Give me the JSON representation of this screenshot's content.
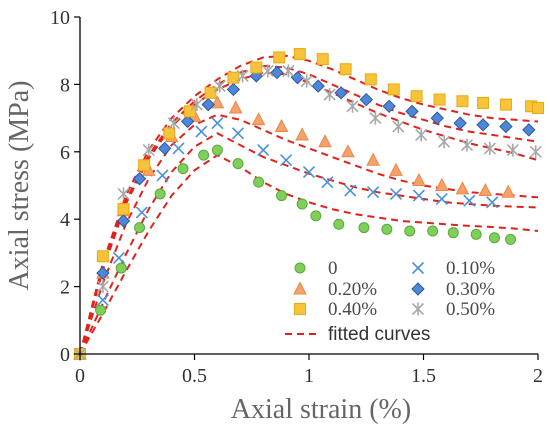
{
  "chart_data": {
    "type": "scatter",
    "xlabel": "Axial strain (%)",
    "ylabel": "Axial stress (MPa)",
    "xlim": [
      0,
      2
    ],
    "ylim": [
      0,
      10
    ],
    "x_ticks": [
      "0",
      "0.5",
      "1",
      "1.5",
      "2"
    ],
    "y_ticks": [
      "0",
      "2",
      "4",
      "6",
      "8",
      "10"
    ],
    "grid": false,
    "legend_position": "bottom-right",
    "series": [
      {
        "name": "0",
        "marker": "circle",
        "color": "#7fcf5a",
        "points": [
          [
            0,
            0
          ],
          [
            0.09,
            1.3
          ],
          [
            0.18,
            2.55
          ],
          [
            0.26,
            3.75
          ],
          [
            0.35,
            4.75
          ],
          [
            0.45,
            5.5
          ],
          [
            0.54,
            5.9
          ],
          [
            0.6,
            6.05
          ],
          [
            0.69,
            5.65
          ],
          [
            0.78,
            5.1
          ],
          [
            0.88,
            4.7
          ],
          [
            0.97,
            4.45
          ],
          [
            1.03,
            4.1
          ],
          [
            1.13,
            3.85
          ],
          [
            1.24,
            3.75
          ],
          [
            1.34,
            3.7
          ],
          [
            1.44,
            3.65
          ],
          [
            1.54,
            3.65
          ],
          [
            1.63,
            3.6
          ],
          [
            1.73,
            3.55
          ],
          [
            1.81,
            3.45
          ],
          [
            1.88,
            3.4
          ]
        ]
      },
      {
        "name": "0.10%",
        "marker": "cross",
        "color": "#4a90d9",
        "points": [
          [
            0,
            0
          ],
          [
            0.1,
            1.6
          ],
          [
            0.17,
            2.85
          ],
          [
            0.27,
            4.2
          ],
          [
            0.36,
            5.3
          ],
          [
            0.43,
            6.1
          ],
          [
            0.53,
            6.6
          ],
          [
            0.6,
            6.85
          ],
          [
            0.69,
            6.55
          ],
          [
            0.8,
            6.05
          ],
          [
            0.9,
            5.75
          ],
          [
            1.0,
            5.4
          ],
          [
            1.08,
            5.1
          ],
          [
            1.18,
            4.85
          ],
          [
            1.28,
            4.8
          ],
          [
            1.38,
            4.75
          ],
          [
            1.48,
            4.7
          ],
          [
            1.58,
            4.6
          ],
          [
            1.7,
            4.55
          ],
          [
            1.8,
            4.5
          ]
        ]
      },
      {
        "name": "0.20%",
        "marker": "triangle",
        "color": "#f5a26a",
        "points": [
          [
            0,
            0
          ],
          [
            0.1,
            2.4
          ],
          [
            0.19,
            4.25
          ],
          [
            0.3,
            5.45
          ],
          [
            0.4,
            6.45
          ],
          [
            0.5,
            7.05
          ],
          [
            0.6,
            7.45
          ],
          [
            0.68,
            7.3
          ],
          [
            0.78,
            6.95
          ],
          [
            0.88,
            6.75
          ],
          [
            0.97,
            6.5
          ],
          [
            1.07,
            6.3
          ],
          [
            1.17,
            6.0
          ],
          [
            1.28,
            5.75
          ],
          [
            1.38,
            5.45
          ],
          [
            1.48,
            5.15
          ],
          [
            1.58,
            5.0
          ],
          [
            1.67,
            4.9
          ],
          [
            1.77,
            4.85
          ],
          [
            1.87,
            4.8
          ]
        ]
      },
      {
        "name": "0.30%",
        "marker": "diamond",
        "color": "#4f86d8",
        "points": [
          [
            0,
            0
          ],
          [
            0.1,
            2.4
          ],
          [
            0.19,
            3.95
          ],
          [
            0.26,
            5.2
          ],
          [
            0.37,
            6.1
          ],
          [
            0.47,
            6.9
          ],
          [
            0.56,
            7.4
          ],
          [
            0.67,
            7.85
          ],
          [
            0.77,
            8.25
          ],
          [
            0.86,
            8.35
          ],
          [
            0.95,
            8.2
          ],
          [
            1.04,
            7.95
          ],
          [
            1.14,
            7.75
          ],
          [
            1.25,
            7.55
          ],
          [
            1.35,
            7.35
          ],
          [
            1.45,
            7.2
          ],
          [
            1.56,
            7.0
          ],
          [
            1.66,
            6.85
          ],
          [
            1.76,
            6.8
          ],
          [
            1.86,
            6.75
          ],
          [
            1.96,
            6.65
          ]
        ]
      },
      {
        "name": "0.40%",
        "marker": "square",
        "color": "#f7c33b",
        "points": [
          [
            0,
            0
          ],
          [
            0.1,
            2.9
          ],
          [
            0.19,
            4.3
          ],
          [
            0.28,
            5.6
          ],
          [
            0.39,
            6.55
          ],
          [
            0.48,
            7.2
          ],
          [
            0.57,
            7.75
          ],
          [
            0.67,
            8.2
          ],
          [
            0.77,
            8.5
          ],
          [
            0.87,
            8.8
          ],
          [
            0.96,
            8.9
          ],
          [
            1.06,
            8.75
          ],
          [
            1.16,
            8.45
          ],
          [
            1.27,
            8.15
          ],
          [
            1.37,
            7.85
          ],
          [
            1.47,
            7.65
          ],
          [
            1.57,
            7.55
          ],
          [
            1.67,
            7.5
          ],
          [
            1.76,
            7.45
          ],
          [
            1.86,
            7.4
          ],
          [
            1.97,
            7.35
          ],
          [
            2.0,
            7.3
          ]
        ]
      },
      {
        "name": "0.50%",
        "marker": "asterisk",
        "color": "#a8a8a8",
        "points": [
          [
            0,
            0
          ],
          [
            0.1,
            2.0
          ],
          [
            0.19,
            4.75
          ],
          [
            0.3,
            6.05
          ],
          [
            0.41,
            6.85
          ],
          [
            0.51,
            7.4
          ],
          [
            0.61,
            7.95
          ],
          [
            0.71,
            8.25
          ],
          [
            0.82,
            8.4
          ],
          [
            0.91,
            8.4
          ],
          [
            0.99,
            8.1
          ],
          [
            1.09,
            7.7
          ],
          [
            1.19,
            7.35
          ],
          [
            1.29,
            7.0
          ],
          [
            1.39,
            6.75
          ],
          [
            1.49,
            6.5
          ],
          [
            1.59,
            6.3
          ],
          [
            1.69,
            6.2
          ],
          [
            1.79,
            6.1
          ],
          [
            1.89,
            6.05
          ],
          [
            1.99,
            6.0
          ]
        ]
      }
    ],
    "fitted_curves": {
      "name": "fitted curves",
      "color": "#e0221a",
      "style": "dashed",
      "curves": [
        [
          [
            0,
            0
          ],
          [
            0.1,
            1.2
          ],
          [
            0.2,
            2.45
          ],
          [
            0.3,
            3.65
          ],
          [
            0.4,
            4.7
          ],
          [
            0.5,
            5.45
          ],
          [
            0.6,
            5.9
          ],
          [
            0.7,
            5.55
          ],
          [
            0.8,
            5.1
          ],
          [
            0.9,
            4.75
          ],
          [
            1.0,
            4.5
          ],
          [
            1.1,
            4.3
          ],
          [
            1.2,
            4.15
          ],
          [
            1.3,
            4.05
          ],
          [
            1.4,
            3.95
          ],
          [
            1.5,
            3.9
          ],
          [
            1.6,
            3.85
          ],
          [
            1.7,
            3.8
          ],
          [
            1.8,
            3.77
          ],
          [
            1.9,
            3.72
          ],
          [
            2.0,
            3.65
          ]
        ],
        [
          [
            0,
            0
          ],
          [
            0.1,
            1.5
          ],
          [
            0.2,
            2.95
          ],
          [
            0.3,
            4.3
          ],
          [
            0.4,
            5.4
          ],
          [
            0.5,
            6.15
          ],
          [
            0.6,
            6.55
          ],
          [
            0.7,
            6.2
          ],
          [
            0.8,
            5.85
          ],
          [
            0.9,
            5.6
          ],
          [
            1.0,
            5.35
          ],
          [
            1.1,
            5.15
          ],
          [
            1.2,
            4.95
          ],
          [
            1.3,
            4.8
          ],
          [
            1.4,
            4.7
          ],
          [
            1.5,
            4.6
          ],
          [
            1.6,
            4.5
          ],
          [
            1.7,
            4.45
          ],
          [
            1.8,
            4.4
          ],
          [
            1.9,
            4.37
          ],
          [
            2.0,
            4.35
          ]
        ],
        [
          [
            0,
            0
          ],
          [
            0.1,
            2.1
          ],
          [
            0.2,
            3.85
          ],
          [
            0.3,
            5.2
          ],
          [
            0.4,
            6.2
          ],
          [
            0.5,
            6.8
          ],
          [
            0.6,
            7.1
          ],
          [
            0.7,
            6.95
          ],
          [
            0.8,
            6.65
          ],
          [
            0.9,
            6.35
          ],
          [
            1.0,
            6.1
          ],
          [
            1.1,
            5.85
          ],
          [
            1.2,
            5.6
          ],
          [
            1.3,
            5.35
          ],
          [
            1.4,
            5.15
          ],
          [
            1.5,
            5.0
          ],
          [
            1.6,
            4.9
          ],
          [
            1.7,
            4.8
          ],
          [
            1.8,
            4.75
          ],
          [
            1.9,
            4.7
          ],
          [
            2.0,
            4.65
          ]
        ],
        [
          [
            0,
            0
          ],
          [
            0.1,
            2.5
          ],
          [
            0.2,
            4.45
          ],
          [
            0.3,
            5.8
          ],
          [
            0.4,
            6.75
          ],
          [
            0.5,
            7.4
          ],
          [
            0.6,
            7.85
          ],
          [
            0.7,
            8.15
          ],
          [
            0.8,
            8.35
          ],
          [
            0.9,
            8.3
          ],
          [
            1.0,
            8.05
          ],
          [
            1.1,
            7.75
          ],
          [
            1.2,
            7.45
          ],
          [
            1.3,
            7.15
          ],
          [
            1.4,
            6.9
          ],
          [
            1.5,
            6.65
          ],
          [
            1.6,
            6.45
          ],
          [
            1.7,
            6.25
          ],
          [
            1.8,
            6.1
          ],
          [
            1.9,
            5.95
          ],
          [
            2.0,
            5.75
          ]
        ],
        [
          [
            0,
            0
          ],
          [
            0.1,
            2.6
          ],
          [
            0.2,
            4.55
          ],
          [
            0.3,
            5.9
          ],
          [
            0.4,
            6.85
          ],
          [
            0.5,
            7.5
          ],
          [
            0.6,
            8.0
          ],
          [
            0.7,
            8.35
          ],
          [
            0.8,
            8.55
          ],
          [
            0.9,
            8.5
          ],
          [
            1.0,
            8.3
          ],
          [
            1.1,
            8.0
          ],
          [
            1.2,
            7.7
          ],
          [
            1.3,
            7.4
          ],
          [
            1.4,
            7.15
          ],
          [
            1.5,
            6.95
          ],
          [
            1.6,
            6.75
          ],
          [
            1.7,
            6.6
          ],
          [
            1.8,
            6.5
          ],
          [
            1.9,
            6.4
          ],
          [
            2.0,
            6.3
          ]
        ],
        [
          [
            0,
            0
          ],
          [
            0.1,
            2.7
          ],
          [
            0.2,
            4.7
          ],
          [
            0.3,
            6.05
          ],
          [
            0.4,
            7.0
          ],
          [
            0.5,
            7.65
          ],
          [
            0.6,
            8.15
          ],
          [
            0.7,
            8.55
          ],
          [
            0.8,
            8.8
          ],
          [
            0.9,
            8.85
          ],
          [
            1.0,
            8.7
          ],
          [
            1.1,
            8.45
          ],
          [
            1.2,
            8.15
          ],
          [
            1.3,
            7.85
          ],
          [
            1.4,
            7.6
          ],
          [
            1.5,
            7.4
          ],
          [
            1.6,
            7.25
          ],
          [
            1.7,
            7.1
          ],
          [
            1.8,
            7.0
          ],
          [
            1.9,
            6.95
          ],
          [
            2.0,
            6.9
          ]
        ]
      ]
    },
    "legend": {
      "items": [
        {
          "label": "0",
          "marker": "circle",
          "color": "#7fcf5a"
        },
        {
          "label": "0.10%",
          "marker": "cross",
          "color": "#4a90d9"
        },
        {
          "label": "0.20%",
          "marker": "triangle",
          "color": "#f5a26a"
        },
        {
          "label": "0.30%",
          "marker": "diamond",
          "color": "#4f86d8"
        },
        {
          "label": "0.40%",
          "marker": "square",
          "color": "#f7c33b"
        },
        {
          "label": "0.50%",
          "marker": "asterisk",
          "color": "#a8a8a8"
        }
      ],
      "fit_label": "fitted curves"
    }
  }
}
